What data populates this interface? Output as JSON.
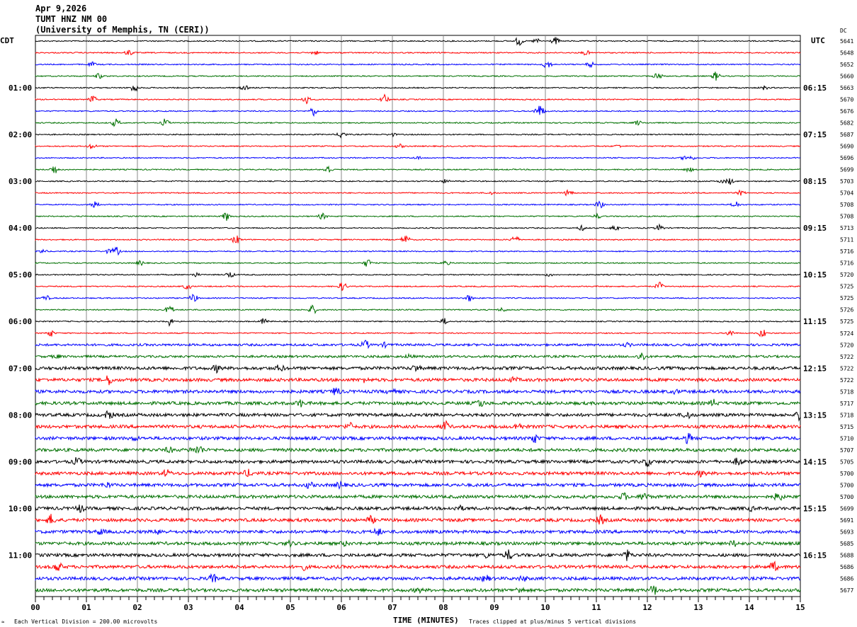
{
  "header": {
    "date": "Apr 9,2026",
    "station": "TUMT HNZ NM 00",
    "institution": "(University of Memphis, TN (CERI))"
  },
  "left_tz": "CDT",
  "right_tz": "UTC",
  "dc_header": "DC",
  "footer": {
    "scale_note": "Each Vertical Division =  200.00 microvolts",
    "xlabel": "TIME (MINUTES)",
    "clip_note": "Traces clipped at plus/minus 5 vertical divisions"
  },
  "chart_data": {
    "type": "line",
    "title": "TUMT HNZ NM 00",
    "xlabel": "TIME (MINUTES)",
    "xlim": [
      0,
      15
    ],
    "x_ticks": [
      "00",
      "01",
      "02",
      "03",
      "04",
      "05",
      "06",
      "07",
      "08",
      "09",
      "10",
      "11",
      "12",
      "13",
      "14",
      "15"
    ],
    "grid": true,
    "trace_colors": [
      "#000000",
      "#ff0000",
      "#0000ff",
      "#007000"
    ],
    "traces_per_hour": 4,
    "cdt_labels": [
      "01:00",
      "02:00",
      "03:00",
      "04:00",
      "05:00",
      "06:00",
      "07:00",
      "08:00",
      "09:00",
      "10:00",
      "11:00"
    ],
    "utc_labels": [
      "06:15",
      "07:15",
      "08:15",
      "09:15",
      "10:15",
      "11:15",
      "12:15",
      "13:15",
      "14:15",
      "15:15",
      "16:15"
    ],
    "dc_values": [
      "5641",
      "5648",
      "5652",
      "5660",
      "5663",
      "5670",
      "5676",
      "5682",
      "5687",
      "5690",
      "5696",
      "5699",
      "5703",
      "5704",
      "5708",
      "5708",
      "5713",
      "5711",
      "5716",
      "5716",
      "5720",
      "5725",
      "5725",
      "5726",
      "5725",
      "5724",
      "5720",
      "5722",
      "5722",
      "5722",
      "5718",
      "5717",
      "5718",
      "5715",
      "5710",
      "5707",
      "5705",
      "5700",
      "5700",
      "5700",
      "5699",
      "5691",
      "5693",
      "5685",
      "5688",
      "5686",
      "5686",
      "5677"
    ]
  }
}
